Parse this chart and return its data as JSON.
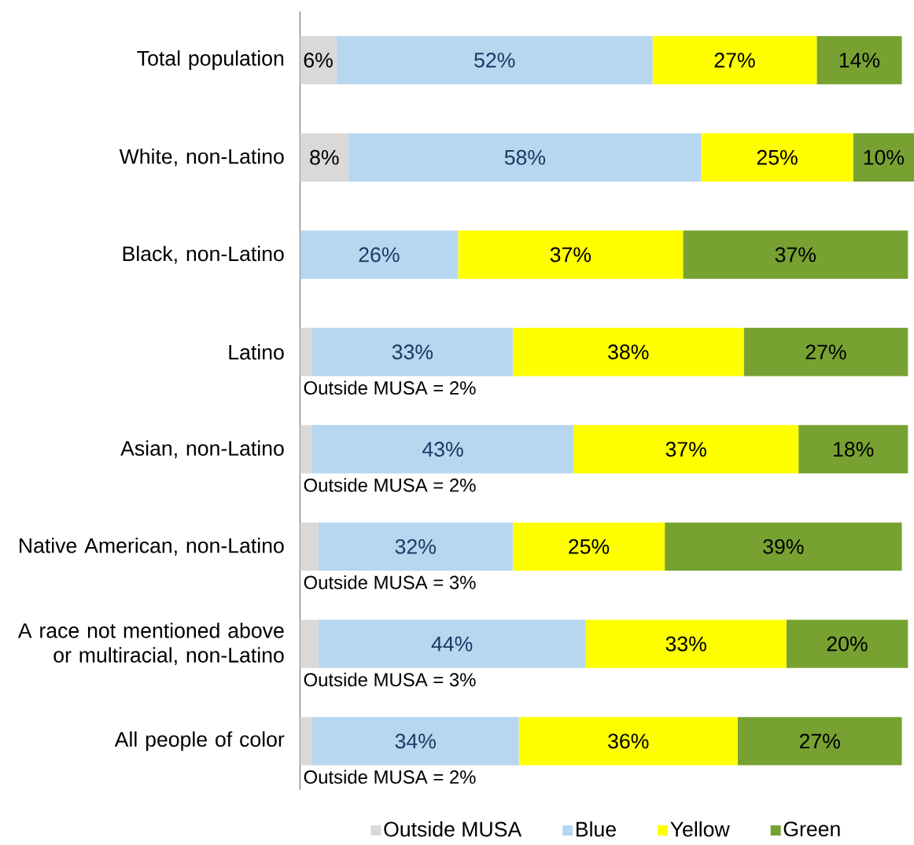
{
  "chart_data": {
    "type": "bar",
    "orientation": "horizontal",
    "stacked": true,
    "categories": [
      "Total population",
      "White, non-Latino",
      "Black, non-Latino",
      "Latino",
      "Asian, non-Latino",
      "Native American, non-Latino",
      "A race not mentioned above or multiracial, non-Latino",
      "All people of color"
    ],
    "series": [
      {
        "name": "Outside MUSA",
        "color": "#d9d9d9",
        "values": [
          6,
          8,
          null,
          2,
          2,
          3,
          3,
          2
        ],
        "value_labels": [
          "6%",
          "8%",
          null,
          null,
          null,
          null,
          null,
          null
        ]
      },
      {
        "name": "Blue",
        "color": "#b7d6f0",
        "values": [
          52,
          58,
          26,
          33,
          43,
          32,
          44,
          34
        ],
        "value_labels": [
          "52%",
          "58%",
          "26%",
          "33%",
          "43%",
          "32%",
          "44%",
          "34%"
        ]
      },
      {
        "name": "Yellow",
        "color": "#ffff00",
        "values": [
          27,
          25,
          37,
          38,
          37,
          25,
          33,
          36
        ],
        "value_labels": [
          "27%",
          "25%",
          "37%",
          "38%",
          "37%",
          "25%",
          "33%",
          "36%"
        ]
      },
      {
        "name": "Green",
        "color": "#77a232",
        "values": [
          14,
          10,
          37,
          27,
          18,
          39,
          20,
          27
        ],
        "value_labels": [
          "14%",
          "10%",
          "37%",
          "27%",
          "18%",
          "39%",
          "20%",
          "27%"
        ]
      }
    ],
    "xlim": [
      0,
      101
    ],
    "tick_labels": "y",
    "legend": "bottom",
    "annotations": [
      "Outside MUSA = 2%",
      "Outside MUSA = 2%",
      "Outside MUSA = 3%",
      "Outside MUSA = 3%",
      "Outside MUSA = 2%"
    ]
  }
}
